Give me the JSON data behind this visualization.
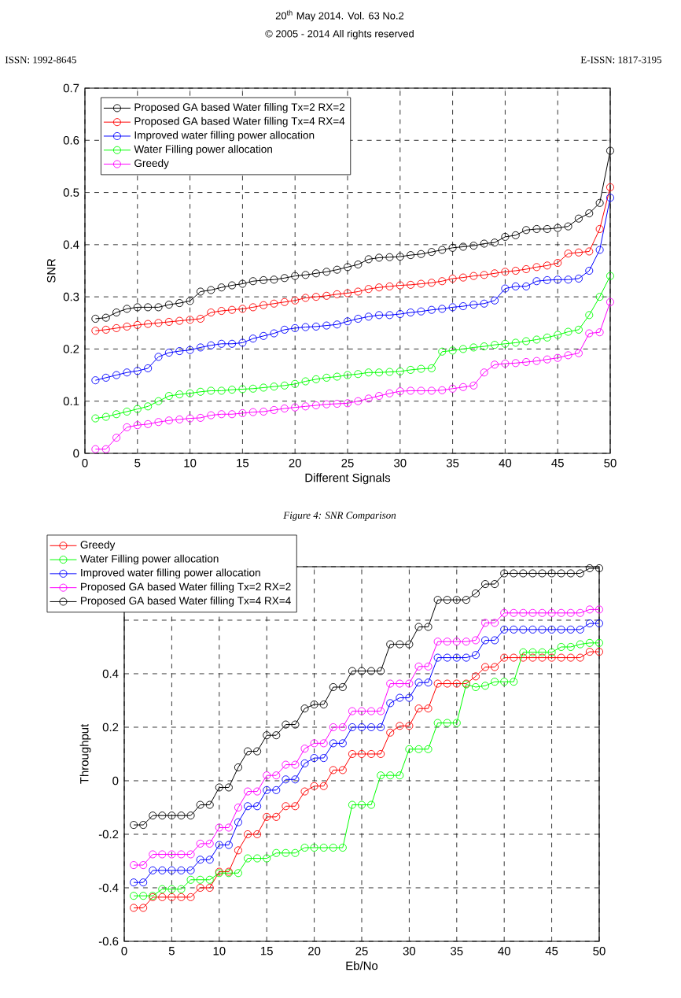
{
  "chart_data": [
    {
      "type": "line",
      "xlabel": "Different Signals",
      "ylabel": "SNR",
      "xlim": [
        0,
        50
      ],
      "ylim": [
        0,
        0.7
      ],
      "xticks": [
        0,
        5,
        10,
        15,
        20,
        25,
        30,
        35,
        40,
        45,
        50
      ],
      "yticks": [
        0,
        0.1,
        0.2,
        0.3,
        0.4,
        0.5,
        0.6,
        0.7
      ],
      "grid": true,
      "legend": "top left",
      "marker": "circle",
      "annotations": [
        "20$^{th}$ May 2014. Vol. 63 No.2",
        "© 2005 - 2014 All rights reserved",
        "ISSN: 1992-8645",
        "E-ISSN: 1817-3195",
        "Figure 4: SNR Comparison"
      ],
      "x": [
        1,
        2,
        3,
        4,
        5,
        6,
        7,
        8,
        9,
        10,
        11,
        12,
        13,
        14,
        15,
        16,
        17,
        18,
        19,
        20,
        21,
        22,
        23,
        24,
        25,
        26,
        27,
        28,
        29,
        30,
        31,
        32,
        33,
        34,
        35,
        36,
        37,
        38,
        39,
        40,
        41,
        42,
        43,
        44,
        45,
        46,
        47,
        48,
        49,
        50
      ],
      "series": [
        {
          "name": "Proposed GA based Water filling Tx=2 RX=2",
          "color": "#000000",
          "values": [
            0.258,
            0.26,
            0.27,
            0.277,
            0.28,
            0.28,
            0.28,
            0.285,
            0.288,
            0.292,
            0.31,
            0.313,
            0.318,
            0.322,
            0.325,
            0.33,
            0.332,
            0.333,
            0.336,
            0.34,
            0.342,
            0.345,
            0.348,
            0.352,
            0.357,
            0.362,
            0.372,
            0.375,
            0.376,
            0.377,
            0.38,
            0.382,
            0.386,
            0.39,
            0.394,
            0.396,
            0.398,
            0.402,
            0.404,
            0.415,
            0.418,
            0.428,
            0.43,
            0.43,
            0.432,
            0.435,
            0.45,
            0.46,
            0.48,
            0.58
          ]
        },
        {
          "name": "Proposed GA based Water filling Tx=4 RX=4",
          "color": "#ff0000",
          "values": [
            0.235,
            0.237,
            0.24,
            0.243,
            0.246,
            0.248,
            0.25,
            0.252,
            0.254,
            0.256,
            0.258,
            0.27,
            0.273,
            0.275,
            0.277,
            0.28,
            0.284,
            0.287,
            0.29,
            0.293,
            0.298,
            0.3,
            0.302,
            0.305,
            0.307,
            0.31,
            0.315,
            0.318,
            0.32,
            0.322,
            0.323,
            0.325,
            0.327,
            0.33,
            0.335,
            0.337,
            0.34,
            0.342,
            0.345,
            0.348,
            0.35,
            0.353,
            0.357,
            0.36,
            0.365,
            0.383,
            0.385,
            0.387,
            0.43,
            0.51
          ]
        },
        {
          "name": "Improved water filling power allocation",
          "color": "#0000ff",
          "values": [
            0.14,
            0.145,
            0.15,
            0.155,
            0.158,
            0.163,
            0.185,
            0.193,
            0.196,
            0.198,
            0.203,
            0.207,
            0.21,
            0.21,
            0.212,
            0.22,
            0.225,
            0.23,
            0.237,
            0.24,
            0.242,
            0.243,
            0.245,
            0.247,
            0.253,
            0.258,
            0.262,
            0.265,
            0.265,
            0.267,
            0.27,
            0.272,
            0.275,
            0.277,
            0.28,
            0.282,
            0.285,
            0.287,
            0.293,
            0.316,
            0.32,
            0.32,
            0.33,
            0.332,
            0.333,
            0.333,
            0.335,
            0.35,
            0.39,
            0.49
          ]
        },
        {
          "name": "Water Filling power allocation",
          "color": "#00ff00",
          "values": [
            0.067,
            0.07,
            0.075,
            0.08,
            0.085,
            0.09,
            0.1,
            0.11,
            0.113,
            0.115,
            0.118,
            0.12,
            0.12,
            0.122,
            0.123,
            0.124,
            0.126,
            0.128,
            0.13,
            0.133,
            0.138,
            0.142,
            0.145,
            0.147,
            0.15,
            0.152,
            0.155,
            0.155,
            0.156,
            0.157,
            0.16,
            0.162,
            0.163,
            0.195,
            0.197,
            0.2,
            0.203,
            0.205,
            0.208,
            0.21,
            0.212,
            0.215,
            0.218,
            0.222,
            0.227,
            0.233,
            0.237,
            0.265,
            0.3,
            0.34
          ]
        },
        {
          "name": "Greedy",
          "color": "#ff00ff",
          "values": [
            0.008,
            0.008,
            0.03,
            0.05,
            0.054,
            0.056,
            0.06,
            0.063,
            0.065,
            0.067,
            0.068,
            0.073,
            0.075,
            0.075,
            0.077,
            0.079,
            0.08,
            0.083,
            0.086,
            0.088,
            0.09,
            0.092,
            0.094,
            0.095,
            0.096,
            0.1,
            0.105,
            0.11,
            0.115,
            0.119,
            0.12,
            0.12,
            0.12,
            0.121,
            0.124,
            0.127,
            0.13,
            0.155,
            0.17,
            0.172,
            0.173,
            0.175,
            0.177,
            0.18,
            0.183,
            0.188,
            0.192,
            0.23,
            0.232,
            0.29
          ]
        }
      ]
    },
    {
      "type": "line",
      "xlabel": "Eb/No",
      "ylabel": "Throughput",
      "xlim": [
        0,
        50
      ],
      "ylim": [
        -0.6,
        0.8
      ],
      "xticks": [
        0,
        5,
        10,
        15,
        20,
        25,
        30,
        35,
        40,
        45,
        50
      ],
      "yticks": [
        -0.6,
        -0.4,
        -0.2,
        0,
        0.2,
        0.4,
        {
          "value": 0.6,
          "label": null
        },
        {
          "value": 0.8,
          "label": null
        }
      ],
      "grid": true,
      "legend": "top left",
      "marker": "circle",
      "x": [
        1,
        2,
        3,
        4,
        5,
        6,
        7,
        8,
        9,
        10,
        11,
        12,
        13,
        14,
        15,
        16,
        17,
        18,
        19,
        20,
        21,
        22,
        23,
        24,
        25,
        26,
        27,
        28,
        29,
        30,
        31,
        32,
        33,
        34,
        35,
        36,
        37,
        38,
        39,
        40,
        41,
        42,
        43,
        44,
        45,
        46,
        47,
        48,
        49,
        50
      ],
      "series": [
        {
          "name": "Greedy",
          "color": "#ff0000",
          "values": [
            -0.475,
            -0.475,
            -0.435,
            -0.435,
            -0.435,
            -0.435,
            -0.435,
            -0.4,
            -0.4,
            -0.34,
            -0.34,
            -0.26,
            -0.2,
            -0.2,
            -0.135,
            -0.135,
            -0.095,
            -0.095,
            -0.04,
            -0.02,
            -0.02,
            0.04,
            0.04,
            0.1,
            0.1,
            0.1,
            0.1,
            0.18,
            0.205,
            0.205,
            0.27,
            0.27,
            0.363,
            0.363,
            0.363,
            0.363,
            0.39,
            0.425,
            0.425,
            0.46,
            0.46,
            0.46,
            0.46,
            0.46,
            0.46,
            0.46,
            0.46,
            0.46,
            0.482,
            0.482
          ]
        },
        {
          "name": "Water Filling power allocation",
          "color": "#00ff00",
          "values": [
            -0.43,
            -0.43,
            -0.43,
            -0.405,
            -0.405,
            -0.405,
            -0.37,
            -0.37,
            -0.37,
            -0.345,
            -0.345,
            -0.345,
            -0.29,
            -0.29,
            -0.29,
            -0.27,
            -0.27,
            -0.27,
            -0.25,
            -0.25,
            -0.25,
            -0.25,
            -0.25,
            -0.09,
            -0.09,
            -0.09,
            0.02,
            0.02,
            0.02,
            0.118,
            0.118,
            0.118,
            0.216,
            0.216,
            0.216,
            0.36,
            0.35,
            0.355,
            0.37,
            0.37,
            0.37,
            0.48,
            0.48,
            0.48,
            0.48,
            0.5,
            0.5,
            0.51,
            0.515,
            0.515
          ]
        },
        {
          "name": "Improved water filling power allocation",
          "color": "#0000ff",
          "values": [
            -0.38,
            -0.38,
            -0.335,
            -0.335,
            -0.335,
            -0.335,
            -0.335,
            -0.295,
            -0.295,
            -0.24,
            -0.24,
            -0.155,
            -0.095,
            -0.095,
            -0.035,
            -0.035,
            0.005,
            0.005,
            0.065,
            0.085,
            0.085,
            0.14,
            0.14,
            0.2,
            0.2,
            0.2,
            0.2,
            0.29,
            0.31,
            0.31,
            0.367,
            0.367,
            0.46,
            0.46,
            0.46,
            0.46,
            0.47,
            0.525,
            0.525,
            0.565,
            0.565,
            0.565,
            0.565,
            0.565,
            0.565,
            0.565,
            0.565,
            0.565,
            0.588,
            0.588
          ]
        },
        {
          "name": "Proposed GA based Water filling Tx=2 RX=2",
          "color": "#ff00ff",
          "values": [
            -0.315,
            -0.315,
            -0.275,
            -0.275,
            -0.275,
            -0.275,
            -0.275,
            -0.235,
            -0.235,
            -0.175,
            -0.175,
            -0.1,
            -0.04,
            -0.04,
            0.02,
            0.02,
            0.06,
            0.06,
            0.12,
            0.14,
            0.14,
            0.2,
            0.2,
            0.26,
            0.26,
            0.26,
            0.26,
            0.363,
            0.363,
            0.363,
            0.427,
            0.427,
            0.52,
            0.52,
            0.52,
            0.52,
            0.525,
            0.59,
            0.59,
            0.627,
            0.627,
            0.627,
            0.627,
            0.627,
            0.627,
            0.627,
            0.627,
            0.627,
            0.64,
            0.64
          ]
        },
        {
          "name": "Proposed GA based Water filling Tx=4 RX=4",
          "color": "#000000",
          "values": [
            -0.165,
            -0.165,
            -0.13,
            -0.13,
            -0.13,
            -0.13,
            -0.13,
            -0.09,
            -0.09,
            -0.025,
            -0.025,
            0.05,
            0.11,
            0.11,
            0.17,
            0.17,
            0.21,
            0.21,
            0.27,
            0.285,
            0.285,
            0.35,
            0.35,
            0.41,
            0.41,
            0.41,
            0.41,
            0.51,
            0.51,
            0.51,
            0.575,
            0.575,
            0.676,
            0.676,
            0.676,
            0.676,
            0.7,
            0.735,
            0.735,
            0.775,
            0.775,
            0.775,
            0.775,
            0.775,
            0.775,
            0.775,
            0.775,
            0.775,
            0.794,
            0.794
          ]
        }
      ]
    }
  ]
}
